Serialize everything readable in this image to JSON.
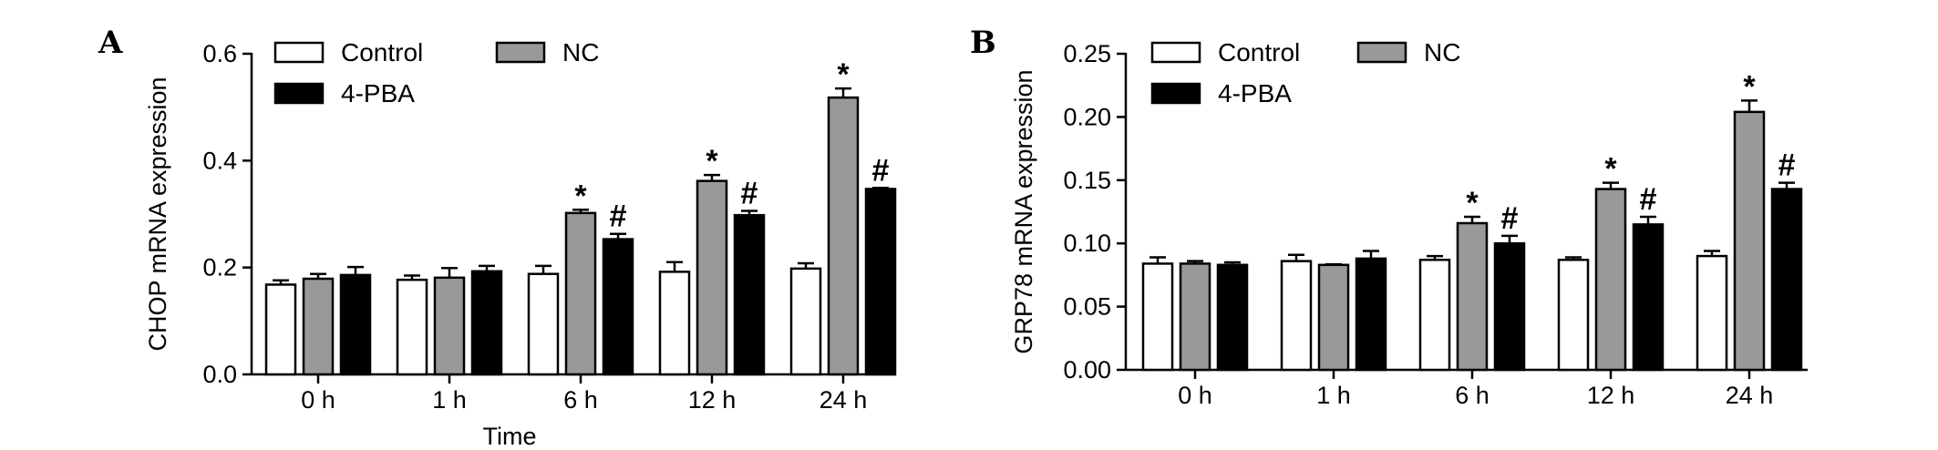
{
  "colors": {
    "Control": "#ffffff",
    "NC": "#999999",
    "4-PBA": "#000000",
    "stroke": "#000000"
  },
  "chart_data": [
    {
      "panel": "A",
      "type": "bar",
      "categories": [
        "0 h",
        "1 h",
        "6 h",
        "12 h",
        "24 h"
      ],
      "xlabel": "Time",
      "ylabel": "CHOP mRNA expression",
      "ylim": [
        0,
        0.6
      ],
      "yticks": [
        "0.0",
        "0.2",
        "0.4",
        "0.6"
      ],
      "ytick_values": [
        0,
        0.2,
        0.4,
        0.6
      ],
      "series": [
        {
          "name": "Control",
          "values": [
            0.168,
            0.177,
            0.188,
            0.192,
            0.198
          ],
          "errors": [
            0.008,
            0.008,
            0.015,
            0.018,
            0.01
          ]
        },
        {
          "name": "NC",
          "values": [
            0.179,
            0.181,
            0.302,
            0.362,
            0.518
          ],
          "errors": [
            0.009,
            0.018,
            0.006,
            0.011,
            0.017
          ]
        },
        {
          "name": "4-PBA",
          "values": [
            0.186,
            0.193,
            0.253,
            0.298,
            0.347
          ],
          "errors": [
            0.015,
            0.01,
            0.01,
            0.008,
            0.002
          ]
        }
      ],
      "annotations": [
        {
          "text": "*",
          "category": "6 h",
          "series": "NC"
        },
        {
          "text": "#",
          "category": "6 h",
          "series": "4-PBA"
        },
        {
          "text": "*",
          "category": "12 h",
          "series": "NC"
        },
        {
          "text": "#",
          "category": "12 h",
          "series": "4-PBA"
        },
        {
          "text": "*",
          "category": "24 h",
          "series": "NC"
        },
        {
          "text": "#",
          "category": "24 h",
          "series": "4-PBA"
        }
      ],
      "legend": "top-left",
      "grid": false
    },
    {
      "panel": "B",
      "type": "bar",
      "categories": [
        "0 h",
        "1 h",
        "6 h",
        "12 h",
        "24 h"
      ],
      "xlabel": "",
      "ylabel": "GRP78 mRNA expression",
      "ylim": [
        0,
        0.25
      ],
      "yticks": [
        "0.00",
        "0.05",
        "0.10",
        "0.15",
        "0.20",
        "0.25"
      ],
      "ytick_values": [
        0,
        0.05,
        0.1,
        0.15,
        0.2,
        0.25
      ],
      "series": [
        {
          "name": "Control",
          "values": [
            0.084,
            0.086,
            0.087,
            0.087,
            0.09
          ],
          "errors": [
            0.005,
            0.005,
            0.003,
            0.002,
            0.004
          ]
        },
        {
          "name": "NC",
          "values": [
            0.084,
            0.083,
            0.116,
            0.143,
            0.204
          ],
          "errors": [
            0.002,
            0.0005,
            0.005,
            0.005,
            0.009
          ]
        },
        {
          "name": "4-PBA",
          "values": [
            0.083,
            0.088,
            0.1,
            0.115,
            0.143
          ],
          "errors": [
            0.002,
            0.006,
            0.006,
            0.006,
            0.005
          ]
        }
      ],
      "annotations": [
        {
          "text": "*",
          "category": "6 h",
          "series": "NC"
        },
        {
          "text": "#",
          "category": "6 h",
          "series": "4-PBA"
        },
        {
          "text": "*",
          "category": "12 h",
          "series": "NC"
        },
        {
          "text": "#",
          "category": "12 h",
          "series": "4-PBA"
        },
        {
          "text": "*",
          "category": "24 h",
          "series": "NC"
        },
        {
          "text": "#",
          "category": "24 h",
          "series": "4-PBA"
        }
      ],
      "legend": "top-left",
      "grid": false
    }
  ]
}
